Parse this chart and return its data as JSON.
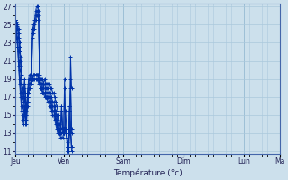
{
  "title": "Température (°c)",
  "bg_color": "#cce0ec",
  "grid_color": "#aac8dc",
  "line_color": "#0033aa",
  "y_min": 11,
  "y_max": 27,
  "y_ticks": [
    11,
    13,
    15,
    17,
    19,
    21,
    23,
    25,
    27
  ],
  "x_labels": [
    "Jeu",
    "Ven",
    "Sam",
    "Dim",
    "Lun",
    "Ma"
  ],
  "day_boundaries": [
    0,
    48,
    108,
    168,
    228,
    264,
    288
  ],
  "series": [
    [
      25.5,
      25.3,
      25.0,
      24.5,
      23.0,
      21.5,
      19.5,
      18.0,
      17.5,
      19.0,
      17.5,
      15.0,
      17.5,
      19.0,
      19.5,
      19.0,
      19.5,
      24.5,
      25.0,
      25.5,
      26.5,
      27.0,
      27.0,
      26.5,
      19.5,
      19.0,
      19.0,
      19.0,
      18.5,
      19.0,
      18.5,
      18.5,
      18.5,
      18.5,
      18.5,
      18.0,
      18.0,
      17.5,
      17.5,
      17.0,
      16.5,
      16.0,
      15.5,
      15.0,
      14.0,
      13.5,
      13.5,
      13.5,
      13.5,
      13.5,
      15.5,
      13.5,
      12.0,
      11.5,
      15.5,
      18.0,
      13.5
    ],
    [
      25.5,
      25.2,
      24.8,
      24.0,
      22.5,
      21.0,
      19.0,
      17.5,
      17.0,
      18.5,
      17.0,
      14.5,
      17.0,
      18.5,
      19.0,
      19.0,
      19.5,
      24.0,
      24.5,
      25.0,
      26.0,
      26.5,
      26.5,
      26.0,
      19.0,
      18.5,
      18.5,
      18.5,
      18.0,
      18.5,
      18.0,
      18.0,
      18.0,
      18.0,
      17.5,
      17.5,
      17.0,
      16.5,
      16.5,
      16.0,
      15.5,
      15.0,
      14.5,
      14.0,
      13.5,
      13.0,
      13.0,
      13.0,
      13.0,
      18.0,
      13.5,
      13.0,
      11.5,
      11.0,
      13.5,
      19.0,
      13.0
    ],
    [
      25.5,
      25.0,
      24.5,
      23.5,
      22.0,
      20.5,
      18.5,
      17.0,
      16.5,
      18.0,
      16.5,
      14.0,
      16.5,
      18.0,
      18.5,
      18.5,
      19.0,
      23.5,
      24.0,
      24.5,
      25.5,
      26.0,
      26.0,
      25.5,
      19.0,
      18.5,
      18.5,
      18.0,
      18.0,
      18.0,
      17.5,
      17.5,
      17.5,
      17.5,
      17.0,
      17.0,
      16.5,
      16.0,
      16.0,
      15.5,
      15.0,
      14.5,
      14.0,
      13.5,
      13.0,
      12.5,
      12.5,
      12.5,
      13.0,
      19.0,
      13.0,
      12.5,
      11.0,
      11.0,
      13.0,
      21.5,
      18.0
    ],
    [
      25.5,
      24.5,
      23.5,
      22.0,
      20.0,
      18.5,
      17.0,
      16.0,
      15.5,
      17.0,
      15.5,
      15.0,
      16.0,
      17.5,
      18.0,
      18.0,
      18.5,
      19.0,
      19.5,
      19.5,
      19.5,
      19.5,
      19.5,
      19.0,
      18.5,
      18.0,
      18.0,
      17.5,
      17.5,
      17.5,
      17.0,
      17.0,
      17.0,
      17.0,
      16.5,
      16.5,
      16.0,
      15.5,
      15.5,
      15.0,
      14.5,
      14.0,
      13.5,
      13.5,
      13.0,
      13.5,
      15.5,
      13.5,
      13.5,
      13.5,
      13.5,
      13.0,
      11.5,
      11.5,
      15.5,
      13.5,
      11.5
    ],
    [
      25.5,
      24.0,
      23.0,
      21.0,
      19.0,
      17.5,
      16.0,
      15.0,
      14.5,
      16.0,
      14.5,
      15.5,
      16.5,
      18.0,
      18.0,
      18.0,
      18.5,
      19.0,
      19.5,
      19.5,
      19.5,
      19.5,
      19.5,
      19.0,
      18.5,
      18.0,
      18.0,
      17.5,
      17.5,
      17.5,
      17.0,
      17.0,
      17.0,
      17.0,
      16.5,
      16.5,
      16.0,
      15.5,
      15.5,
      15.0,
      14.5,
      14.0,
      13.5,
      13.5,
      13.0,
      13.0,
      16.0,
      13.5,
      13.5,
      13.5,
      13.5,
      13.5,
      11.5,
      11.5,
      16.0,
      13.5,
      11.5
    ],
    [
      25.5,
      23.5,
      22.5,
      20.5,
      18.5,
      17.0,
      15.5,
      14.5,
      14.0,
      15.5,
      14.0,
      16.0,
      17.0,
      18.5,
      18.5,
      18.5,
      19.0,
      19.0,
      19.0,
      19.0,
      19.0,
      19.0,
      19.0,
      18.5,
      18.5,
      18.0,
      18.0,
      17.5,
      17.5,
      17.0,
      17.0,
      17.0,
      16.5,
      16.5,
      16.0,
      16.0,
      15.5,
      15.0,
      15.0,
      14.5,
      14.0,
      13.5,
      13.0,
      13.0,
      13.0,
      13.0,
      16.0,
      13.0,
      13.0,
      13.5,
      13.0,
      13.0,
      11.0,
      11.0,
      16.0,
      13.0,
      11.0
    ]
  ]
}
